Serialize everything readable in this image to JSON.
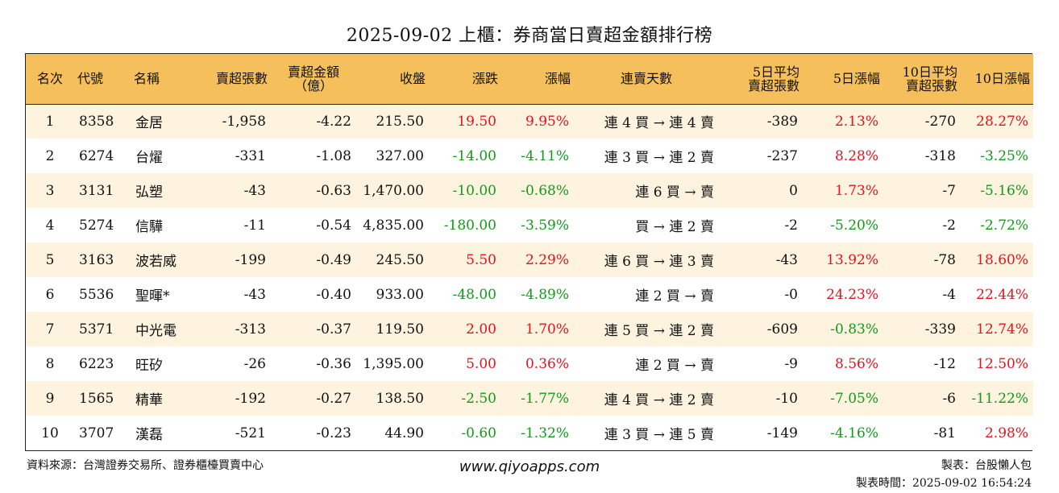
{
  "title": "2025-09-02 上櫃：券商當日賣超金額排行榜",
  "headers": {
    "rank": "名次",
    "code": "代號",
    "name": "名稱",
    "net_sell_lots": "賣超張數",
    "net_sell_amount_l1": "賣超金額",
    "net_sell_amount_l2": "（億）",
    "close": "收盤",
    "change": "漲跌",
    "change_pct": "漲幅",
    "streak": "連賣天數",
    "avg5_l1": "5日平均",
    "avg5_l2": "賣超張數",
    "pct5": "5日漲幅",
    "avg10_l1": "10日平均",
    "avg10_l2": "賣超張數",
    "pct10": "10日漲幅"
  },
  "rows": [
    {
      "rank": "1",
      "code": "8358",
      "name": "金居",
      "lots": "-1,958",
      "amount": "-4.22",
      "close": "215.50",
      "change": "19.50",
      "change_dir": "up",
      "pct": "9.95%",
      "pct_dir": "up",
      "streak": "連 4 買 → 連 4 賣",
      "avg5": "-389",
      "pct5": "2.13%",
      "pct5_dir": "up",
      "avg10": "-270",
      "pct10": "28.27%",
      "pct10_dir": "up"
    },
    {
      "rank": "2",
      "code": "6274",
      "name": "台燿",
      "lots": "-331",
      "amount": "-1.08",
      "close": "327.00",
      "change": "-14.00",
      "change_dir": "down",
      "pct": "-4.11%",
      "pct_dir": "down",
      "streak": "連 3 買 → 連 2 賣",
      "avg5": "-237",
      "pct5": "8.28%",
      "pct5_dir": "up",
      "avg10": "-318",
      "pct10": "-3.25%",
      "pct10_dir": "down"
    },
    {
      "rank": "3",
      "code": "3131",
      "name": "弘塑",
      "lots": "-43",
      "amount": "-0.63",
      "close": "1,470.00",
      "change": "-10.00",
      "change_dir": "down",
      "pct": "-0.68%",
      "pct_dir": "down",
      "streak": "連 6 買 → 賣",
      "avg5": "0",
      "pct5": "1.73%",
      "pct5_dir": "up",
      "avg10": "-7",
      "pct10": "-5.16%",
      "pct10_dir": "down"
    },
    {
      "rank": "4",
      "code": "5274",
      "name": "信驊",
      "lots": "-11",
      "amount": "-0.54",
      "close": "4,835.00",
      "change": "-180.00",
      "change_dir": "down",
      "pct": "-3.59%",
      "pct_dir": "down",
      "streak": "買 → 連 2 賣",
      "avg5": "-2",
      "pct5": "-5.20%",
      "pct5_dir": "down",
      "avg10": "-2",
      "pct10": "-2.72%",
      "pct10_dir": "down"
    },
    {
      "rank": "5",
      "code": "3163",
      "name": "波若威",
      "lots": "-199",
      "amount": "-0.49",
      "close": "245.50",
      "change": "5.50",
      "change_dir": "up",
      "pct": "2.29%",
      "pct_dir": "up",
      "streak": "連 6 買 → 連 3 賣",
      "avg5": "-43",
      "pct5": "13.92%",
      "pct5_dir": "up",
      "avg10": "-78",
      "pct10": "18.60%",
      "pct10_dir": "up"
    },
    {
      "rank": "6",
      "code": "5536",
      "name": "聖暉*",
      "lots": "-43",
      "amount": "-0.40",
      "close": "933.00",
      "change": "-48.00",
      "change_dir": "down",
      "pct": "-4.89%",
      "pct_dir": "down",
      "streak": "連 2 買 → 賣",
      "avg5": "-0",
      "pct5": "24.23%",
      "pct5_dir": "up",
      "avg10": "-4",
      "pct10": "22.44%",
      "pct10_dir": "up"
    },
    {
      "rank": "7",
      "code": "5371",
      "name": "中光電",
      "lots": "-313",
      "amount": "-0.37",
      "close": "119.50",
      "change": "2.00",
      "change_dir": "up",
      "pct": "1.70%",
      "pct_dir": "up",
      "streak": "連 5 買 → 連 2 賣",
      "avg5": "-609",
      "pct5": "-0.83%",
      "pct5_dir": "down",
      "avg10": "-339",
      "pct10": "12.74%",
      "pct10_dir": "up"
    },
    {
      "rank": "8",
      "code": "6223",
      "name": "旺矽",
      "lots": "-26",
      "amount": "-0.36",
      "close": "1,395.00",
      "change": "5.00",
      "change_dir": "up",
      "pct": "0.36%",
      "pct_dir": "up",
      "streak": "連 2 買 → 賣",
      "avg5": "-9",
      "pct5": "8.56%",
      "pct5_dir": "up",
      "avg10": "-12",
      "pct10": "12.50%",
      "pct10_dir": "up"
    },
    {
      "rank": "9",
      "code": "1565",
      "name": "精華",
      "lots": "-192",
      "amount": "-0.27",
      "close": "138.50",
      "change": "-2.50",
      "change_dir": "down",
      "pct": "-1.77%",
      "pct_dir": "down",
      "streak": "連 4 買 → 連 2 賣",
      "avg5": "-10",
      "pct5": "-7.05%",
      "pct5_dir": "down",
      "avg10": "-6",
      "pct10": "-11.22%",
      "pct10_dir": "down"
    },
    {
      "rank": "10",
      "code": "3707",
      "name": "漢磊",
      "lots": "-521",
      "amount": "-0.23",
      "close": "44.90",
      "change": "-0.60",
      "change_dir": "down",
      "pct": "-1.32%",
      "pct_dir": "down",
      "streak": "連 3 買 → 連 5 賣",
      "avg5": "-149",
      "pct5": "-4.16%",
      "pct5_dir": "down",
      "avg10": "-81",
      "pct10": "2.98%",
      "pct10_dir": "up"
    }
  ],
  "footer": {
    "source": "資料來源：台灣證券交易所、證券櫃檯買賣中心",
    "website": "www.qiyoapps.com",
    "maker": "製表：台股懶人包",
    "made_time": "製表時間：2025-09-02 16:54:24"
  },
  "colors": {
    "header_bg": "#f5bf5b",
    "row_alt_bg": "#fdf3df",
    "up": "#e0141e",
    "down": "#129a1a"
  }
}
